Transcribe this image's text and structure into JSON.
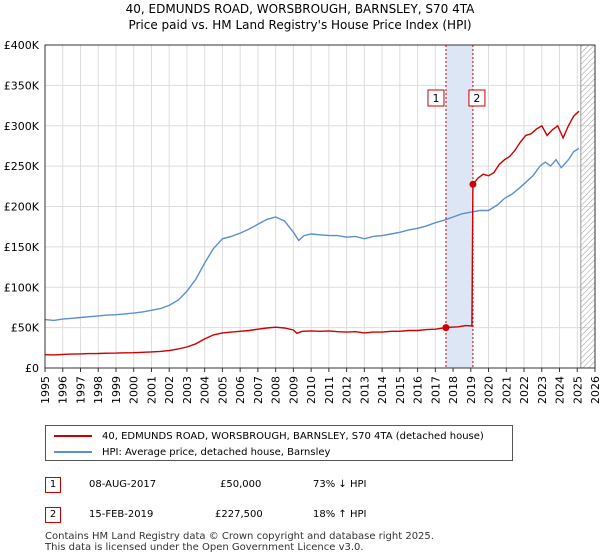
{
  "title_line1": "40, EDMUNDS ROAD, WORSBROUGH, BARNSLEY, S70 4TA",
  "title_line2": "Price paid vs. HM Land Registry's House Price Index (HPI)",
  "chart_data": {
    "type": "line",
    "title": "40, EDMUNDS ROAD, WORSBROUGH, BARNSLEY, S70 4TA — Price paid vs. HM Land Registry's House Price Index (HPI)",
    "xlabel": "",
    "ylabel": "",
    "xlim": [
      1995,
      2026
    ],
    "ylim": [
      0,
      400000
    ],
    "x_ticks": [
      "1995",
      "1996",
      "1997",
      "1998",
      "1999",
      "2000",
      "2001",
      "2002",
      "2003",
      "2004",
      "2005",
      "2006",
      "2007",
      "2008",
      "2009",
      "2010",
      "2011",
      "2012",
      "2013",
      "2014",
      "2015",
      "2016",
      "2017",
      "2018",
      "2019",
      "2020",
      "2021",
      "2022",
      "2023",
      "2024",
      "2025",
      "2026"
    ],
    "y_ticks": [
      {
        "value": 0,
        "label": "£0"
      },
      {
        "value": 50000,
        "label": "£50K"
      },
      {
        "value": 100000,
        "label": "£100K"
      },
      {
        "value": 150000,
        "label": "£150K"
      },
      {
        "value": 200000,
        "label": "£200K"
      },
      {
        "value": 250000,
        "label": "£250K"
      },
      {
        "value": 300000,
        "label": "£300K"
      },
      {
        "value": 350000,
        "label": "£350K"
      },
      {
        "value": 400000,
        "label": "£400K"
      }
    ],
    "grid": true,
    "shaded_band": {
      "start": 2017.6,
      "end": 2019.12,
      "color": "#dce6f5"
    },
    "hatch_from": 2025.2,
    "series": [
      {
        "name": "40, EDMUNDS ROAD, WORSBROUGH, BARNSLEY, S70 4TA (detached house)",
        "color": "#cc0000",
        "points": [
          [
            1995.0,
            16500
          ],
          [
            1995.5,
            16200
          ],
          [
            1996.0,
            16800
          ],
          [
            1996.5,
            17200
          ],
          [
            1997.0,
            17500
          ],
          [
            1997.5,
            17800
          ],
          [
            1998.0,
            18000
          ],
          [
            1998.5,
            18300
          ],
          [
            1999.0,
            18500
          ],
          [
            1999.5,
            18800
          ],
          [
            2000.0,
            19000
          ],
          [
            2000.5,
            19500
          ],
          [
            2001.0,
            20000
          ],
          [
            2001.5,
            20500
          ],
          [
            2002.0,
            21500
          ],
          [
            2002.5,
            23500
          ],
          [
            2003.0,
            26000
          ],
          [
            2003.5,
            30000
          ],
          [
            2004.0,
            36000
          ],
          [
            2004.5,
            41000
          ],
          [
            2005.0,
            43500
          ],
          [
            2005.5,
            44500
          ],
          [
            2006.0,
            45500
          ],
          [
            2006.5,
            46500
          ],
          [
            2007.0,
            48000
          ],
          [
            2007.5,
            49500
          ],
          [
            2008.0,
            50500
          ],
          [
            2008.5,
            49500
          ],
          [
            2009.0,
            47000
          ],
          [
            2009.2,
            43000
          ],
          [
            2009.5,
            45500
          ],
          [
            2010.0,
            46000
          ],
          [
            2010.5,
            45500
          ],
          [
            2011.0,
            46000
          ],
          [
            2011.5,
            45000
          ],
          [
            2012.0,
            44500
          ],
          [
            2012.5,
            45000
          ],
          [
            2013.0,
            43500
          ],
          [
            2013.5,
            44500
          ],
          [
            2014.0,
            44500
          ],
          [
            2014.5,
            45500
          ],
          [
            2015.0,
            45500
          ],
          [
            2015.5,
            46500
          ],
          [
            2016.0,
            46500
          ],
          [
            2016.5,
            47500
          ],
          [
            2017.0,
            48000
          ],
          [
            2017.6,
            50000
          ],
          [
            2017.9,
            50500
          ],
          [
            2018.3,
            51000
          ],
          [
            2018.7,
            52500
          ],
          [
            2019.06,
            52000
          ],
          [
            2019.12,
            227500
          ],
          [
            2019.4,
            235000
          ],
          [
            2019.7,
            240000
          ],
          [
            2020.0,
            238000
          ],
          [
            2020.3,
            242000
          ],
          [
            2020.6,
            252000
          ],
          [
            2020.9,
            258000
          ],
          [
            2021.2,
            262000
          ],
          [
            2021.5,
            270000
          ],
          [
            2021.8,
            280000
          ],
          [
            2022.1,
            288000
          ],
          [
            2022.4,
            290000
          ],
          [
            2022.7,
            296000
          ],
          [
            2023.0,
            300000
          ],
          [
            2023.3,
            288000
          ],
          [
            2023.6,
            295000
          ],
          [
            2023.9,
            300000
          ],
          [
            2024.2,
            285000
          ],
          [
            2024.5,
            300000
          ],
          [
            2024.8,
            312000
          ],
          [
            2025.1,
            318000
          ]
        ]
      },
      {
        "name": "HPI: Average price, detached house, Barnsley",
        "color": "#5b8fd0",
        "points": [
          [
            1995.0,
            60000
          ],
          [
            1995.5,
            59000
          ],
          [
            1996.0,
            60500
          ],
          [
            1996.5,
            61500
          ],
          [
            1997.0,
            62500
          ],
          [
            1997.5,
            63500
          ],
          [
            1998.0,
            64500
          ],
          [
            1998.5,
            65500
          ],
          [
            1999.0,
            66000
          ],
          [
            1999.5,
            67000
          ],
          [
            2000.0,
            68000
          ],
          [
            2000.5,
            69500
          ],
          [
            2001.0,
            71500
          ],
          [
            2001.5,
            73500
          ],
          [
            2002.0,
            77500
          ],
          [
            2002.5,
            84000
          ],
          [
            2003.0,
            95000
          ],
          [
            2003.5,
            110000
          ],
          [
            2004.0,
            130000
          ],
          [
            2004.5,
            148000
          ],
          [
            2005.0,
            160000
          ],
          [
            2005.5,
            163000
          ],
          [
            2006.0,
            167000
          ],
          [
            2006.5,
            172000
          ],
          [
            2007.0,
            178000
          ],
          [
            2007.5,
            184000
          ],
          [
            2008.0,
            187000
          ],
          [
            2008.5,
            182000
          ],
          [
            2009.0,
            168000
          ],
          [
            2009.3,
            158000
          ],
          [
            2009.6,
            164000
          ],
          [
            2010.0,
            166000
          ],
          [
            2010.5,
            165000
          ],
          [
            2011.0,
            164000
          ],
          [
            2011.5,
            164000
          ],
          [
            2012.0,
            162000
          ],
          [
            2012.5,
            163000
          ],
          [
            2013.0,
            160000
          ],
          [
            2013.5,
            163000
          ],
          [
            2014.0,
            164000
          ],
          [
            2014.5,
            166000
          ],
          [
            2015.0,
            168000
          ],
          [
            2015.5,
            171000
          ],
          [
            2016.0,
            173000
          ],
          [
            2016.5,
            176000
          ],
          [
            2017.0,
            180000
          ],
          [
            2017.5,
            183000
          ],
          [
            2018.0,
            187000
          ],
          [
            2018.5,
            191000
          ],
          [
            2019.0,
            193000
          ],
          [
            2019.5,
            195000
          ],
          [
            2020.0,
            195000
          ],
          [
            2020.5,
            202000
          ],
          [
            2020.9,
            210000
          ],
          [
            2021.3,
            215000
          ],
          [
            2021.7,
            222000
          ],
          [
            2022.1,
            230000
          ],
          [
            2022.5,
            238000
          ],
          [
            2022.9,
            250000
          ],
          [
            2023.2,
            255000
          ],
          [
            2023.5,
            250000
          ],
          [
            2023.8,
            258000
          ],
          [
            2024.1,
            248000
          ],
          [
            2024.5,
            258000
          ],
          [
            2024.8,
            268000
          ],
          [
            2025.1,
            272000
          ]
        ]
      }
    ],
    "markers": [
      {
        "label": "1",
        "x": 2017.6,
        "value": 50000
      },
      {
        "label": "2",
        "x": 2019.12,
        "value": 227500
      }
    ]
  },
  "legend": {
    "items": [
      {
        "label": "40, EDMUNDS ROAD, WORSBROUGH, BARNSLEY, S70 4TA (detached house)",
        "color": "#cc0000"
      },
      {
        "label": "HPI: Average price, detached house, Barnsley",
        "color": "#5b8fd0"
      }
    ]
  },
  "transactions": [
    {
      "num": "1",
      "date": "08-AUG-2017",
      "price": "£50,000",
      "hpi": "73% ↓ HPI"
    },
    {
      "num": "2",
      "date": "15-FEB-2019",
      "price": "£227,500",
      "hpi": "18% ↑ HPI"
    }
  ],
  "footer": {
    "line1": "Contains HM Land Registry data © Crown copyright and database right 2025.",
    "line2": "This data is licensed under the Open Government Licence v3.0."
  }
}
